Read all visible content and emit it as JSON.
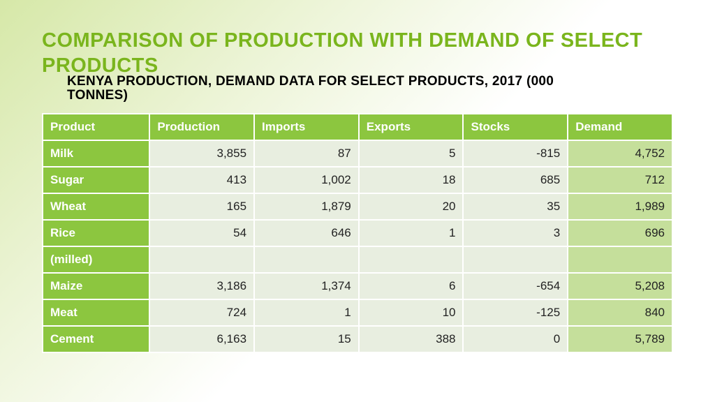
{
  "title": "COMPARISON OF PRODUCTION WITH DEMAND OF SELECT PRODUCTS",
  "subtitle": "KENYA PRODUCTION, DEMAND DATA FOR SELECT PRODUCTS, 2017 (000 TONNES)",
  "colors": {
    "title_color": "#7ab51d",
    "subtitle_color": "#1a1a1a",
    "header_bg": "#8cc63f",
    "header_text": "#ffffff",
    "product_bg": "#8cc63f",
    "product_text": "#ffffff",
    "cell_bg": "#e8eee0",
    "cell_text": "#222222",
    "last_col_bg": "#c5df9b",
    "border_color": "#ffffff",
    "bg_gradient_from": "#d6e8a8",
    "bg_gradient_to": "#ffffff"
  },
  "table": {
    "type": "table",
    "columns": [
      "Product",
      "Production",
      "Imports",
      "Exports",
      "Stocks",
      "Demand"
    ],
    "column_align": [
      "left",
      "right",
      "right",
      "right",
      "right",
      "right"
    ],
    "last_column_highlight": true,
    "rows": [
      {
        "product": "Milk",
        "values": [
          "3,855",
          "87",
          "5",
          "-815",
          "4,752"
        ]
      },
      {
        "product": "Sugar",
        "values": [
          "413",
          "1,002",
          "18",
          "685",
          "712"
        ]
      },
      {
        "product": "Wheat",
        "values": [
          "165",
          "1,879",
          "20",
          "35",
          "1,989"
        ]
      },
      {
        "product": "Rice",
        "values": [
          "54",
          "646",
          "1",
          "3",
          "696"
        ]
      },
      {
        "product": "(milled)",
        "values": [
          "",
          "",
          "",
          "",
          ""
        ]
      },
      {
        "product": "Maize",
        "values": [
          "3,186",
          "1,374",
          "6",
          "-654",
          "5,208"
        ]
      },
      {
        "product": "Meat",
        "values": [
          "724",
          "1",
          "10",
          "-125",
          "840"
        ]
      },
      {
        "product": "Cement",
        "values": [
          "6,163",
          "15",
          "388",
          "0",
          "5,789"
        ]
      }
    ]
  }
}
